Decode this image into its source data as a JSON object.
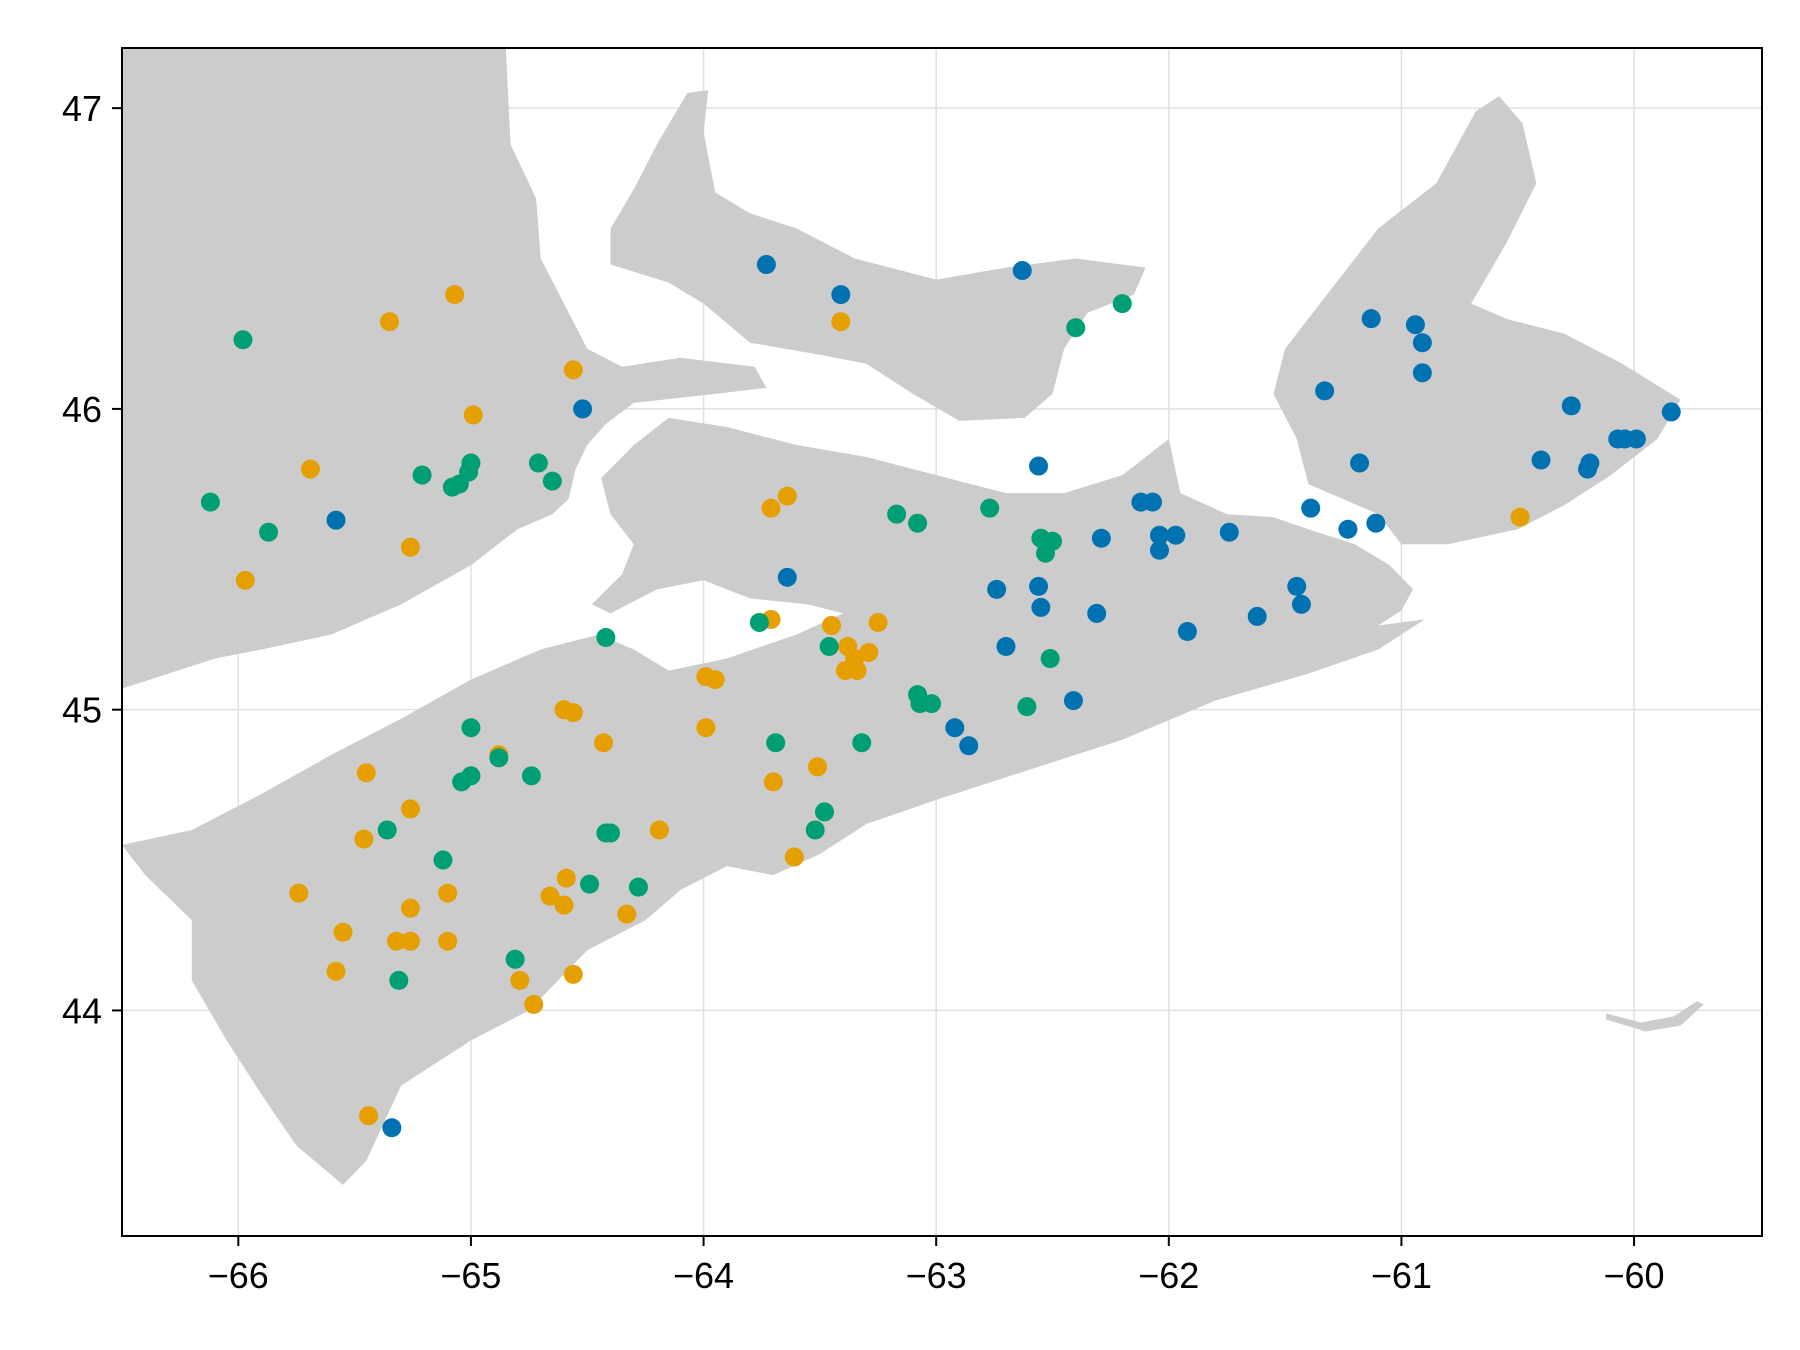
{
  "chart_data": {
    "type": "scatter",
    "title": "",
    "xlabel": "",
    "ylabel": "",
    "xlim": [
      -66.5,
      -59.45
    ],
    "ylim": [
      43.25,
      47.2
    ],
    "x_ticks": [
      -66,
      -65,
      -64,
      -63,
      -62,
      -61,
      -60
    ],
    "x_tick_labels": [
      "−66",
      "−65",
      "−64",
      "−63",
      "−62",
      "−61",
      "−60"
    ],
    "y_ticks": [
      44,
      45,
      46,
      47
    ],
    "y_tick_labels": [
      "44",
      "45",
      "46",
      "47"
    ],
    "grid": true,
    "legend": "none",
    "background_map": "land outline (gray)",
    "colors": {
      "land": "#cccccc",
      "grid": "#e0e0e0",
      "frame": "#000000"
    },
    "series": [
      {
        "color": "#0072b2",
        "points": [
          [
            -63.73,
            46.48
          ],
          [
            -63.41,
            46.38
          ],
          [
            -62.63,
            46.46
          ],
          [
            -64.52,
            46.0
          ],
          [
            -65.58,
            45.63
          ],
          [
            -63.64,
            45.44
          ],
          [
            -62.56,
            45.81
          ],
          [
            -62.12,
            45.69
          ],
          [
            -62.07,
            45.69
          ],
          [
            -62.29,
            45.57
          ],
          [
            -62.04,
            45.58
          ],
          [
            -61.97,
            45.58
          ],
          [
            -62.04,
            45.53
          ],
          [
            -61.74,
            45.59
          ],
          [
            -61.39,
            45.67
          ],
          [
            -61.23,
            45.6
          ],
          [
            -61.11,
            45.62
          ],
          [
            -61.18,
            45.82
          ],
          [
            -61.33,
            46.06
          ],
          [
            -61.13,
            46.3
          ],
          [
            -60.94,
            46.28
          ],
          [
            -60.91,
            46.22
          ],
          [
            -60.91,
            46.12
          ],
          [
            -60.27,
            46.01
          ],
          [
            -59.84,
            45.99
          ],
          [
            -60.07,
            45.9
          ],
          [
            -60.04,
            45.9
          ],
          [
            -59.99,
            45.9
          ],
          [
            -60.4,
            45.83
          ],
          [
            -60.19,
            45.82
          ],
          [
            -60.2,
            45.8
          ],
          [
            -62.74,
            45.4
          ],
          [
            -62.56,
            45.41
          ],
          [
            -62.55,
            45.34
          ],
          [
            -62.31,
            45.32
          ],
          [
            -61.45,
            45.41
          ],
          [
            -61.43,
            45.35
          ],
          [
            -61.62,
            45.31
          ],
          [
            -61.92,
            45.26
          ],
          [
            -62.7,
            45.21
          ],
          [
            -62.41,
            45.03
          ],
          [
            -62.92,
            44.94
          ],
          [
            -62.86,
            44.88
          ],
          [
            -65.34,
            43.61
          ]
        ]
      },
      {
        "color": "#e69f00",
        "points": [
          [
            -65.07,
            46.38
          ],
          [
            -65.35,
            46.29
          ],
          [
            -63.41,
            46.29
          ],
          [
            -64.56,
            46.13
          ],
          [
            -64.99,
            45.98
          ],
          [
            -65.69,
            45.8
          ],
          [
            -65.26,
            45.54
          ],
          [
            -65.97,
            45.43
          ],
          [
            -63.64,
            45.71
          ],
          [
            -63.71,
            45.67
          ],
          [
            -60.49,
            45.64
          ],
          [
            -63.71,
            45.3
          ],
          [
            -63.45,
            45.28
          ],
          [
            -63.25,
            45.29
          ],
          [
            -63.38,
            45.21
          ],
          [
            -63.29,
            45.19
          ],
          [
            -63.35,
            45.17
          ],
          [
            -63.39,
            45.13
          ],
          [
            -63.34,
            45.13
          ],
          [
            -63.99,
            45.11
          ],
          [
            -63.95,
            45.1
          ],
          [
            -64.6,
            45.0
          ],
          [
            -64.56,
            44.99
          ],
          [
            -63.99,
            44.94
          ],
          [
            -64.43,
            44.89
          ],
          [
            -64.88,
            44.85
          ],
          [
            -65.45,
            44.79
          ],
          [
            -63.51,
            44.81
          ],
          [
            -63.7,
            44.76
          ],
          [
            -65.26,
            44.67
          ],
          [
            -65.46,
            44.57
          ],
          [
            -64.19,
            44.6
          ],
          [
            -63.61,
            44.51
          ],
          [
            -65.74,
            44.39
          ],
          [
            -65.1,
            44.39
          ],
          [
            -64.59,
            44.44
          ],
          [
            -64.66,
            44.38
          ],
          [
            -64.6,
            44.35
          ],
          [
            -65.26,
            44.34
          ],
          [
            -64.33,
            44.32
          ],
          [
            -65.55,
            44.26
          ],
          [
            -65.32,
            44.23
          ],
          [
            -65.26,
            44.23
          ],
          [
            -65.1,
            44.23
          ],
          [
            -65.58,
            44.13
          ],
          [
            -64.56,
            44.12
          ],
          [
            -64.79,
            44.1
          ],
          [
            -64.73,
            44.02
          ],
          [
            -65.44,
            43.65
          ]
        ]
      },
      {
        "color": "#009e73",
        "points": [
          [
            -65.98,
            46.23
          ],
          [
            -62.2,
            46.35
          ],
          [
            -62.4,
            46.27
          ],
          [
            -64.71,
            45.82
          ],
          [
            -65.0,
            45.82
          ],
          [
            -65.01,
            45.79
          ],
          [
            -65.21,
            45.78
          ],
          [
            -64.65,
            45.76
          ],
          [
            -65.05,
            45.75
          ],
          [
            -65.08,
            45.74
          ],
          [
            -66.12,
            45.69
          ],
          [
            -65.87,
            45.59
          ],
          [
            -63.17,
            45.65
          ],
          [
            -63.08,
            45.62
          ],
          [
            -62.77,
            45.67
          ],
          [
            -62.55,
            45.57
          ],
          [
            -62.5,
            45.56
          ],
          [
            -62.53,
            45.52
          ],
          [
            -63.76,
            45.29
          ],
          [
            -64.42,
            45.24
          ],
          [
            -63.46,
            45.21
          ],
          [
            -62.51,
            45.17
          ],
          [
            -63.08,
            45.05
          ],
          [
            -63.07,
            45.02
          ],
          [
            -63.02,
            45.02
          ],
          [
            -62.61,
            45.01
          ],
          [
            -65.0,
            44.94
          ],
          [
            -63.69,
            44.89
          ],
          [
            -63.32,
            44.89
          ],
          [
            -64.88,
            44.84
          ],
          [
            -64.74,
            44.78
          ],
          [
            -65.0,
            44.78
          ],
          [
            -65.04,
            44.76
          ],
          [
            -63.48,
            44.66
          ],
          [
            -63.52,
            44.6
          ],
          [
            -65.36,
            44.6
          ],
          [
            -64.42,
            44.59
          ],
          [
            -64.4,
            44.59
          ],
          [
            -65.12,
            44.5
          ],
          [
            -64.49,
            44.42
          ],
          [
            -64.28,
            44.41
          ],
          [
            -64.81,
            44.17
          ],
          [
            -65.31,
            44.1
          ]
        ]
      }
    ]
  }
}
